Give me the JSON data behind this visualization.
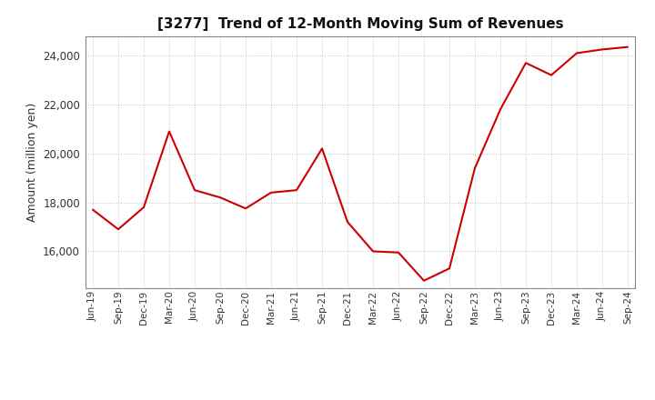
{
  "title": "[3277]  Trend of 12-Month Moving Sum of Revenues",
  "ylabel": "Amount (million yen)",
  "line_color": "#cc0000",
  "background_color": "#ffffff",
  "grid_color": "#bbbbbb",
  "ylim": [
    14500,
    24800
  ],
  "yticks": [
    16000,
    18000,
    20000,
    22000,
    24000
  ],
  "x_labels": [
    "Jun-19",
    "Sep-19",
    "Dec-19",
    "Mar-20",
    "Jun-20",
    "Sep-20",
    "Dec-20",
    "Mar-21",
    "Jun-21",
    "Sep-21",
    "Dec-21",
    "Mar-22",
    "Jun-22",
    "Sep-22",
    "Dec-22",
    "Mar-23",
    "Jun-23",
    "Sep-23",
    "Dec-23",
    "Mar-24",
    "Jun-24",
    "Sep-24"
  ],
  "values": [
    17700,
    16900,
    17800,
    20900,
    18500,
    18200,
    17750,
    18400,
    18500,
    20200,
    17200,
    16000,
    15950,
    14800,
    15300,
    19400,
    21800,
    23700,
    23200,
    24100,
    24250,
    24350
  ]
}
